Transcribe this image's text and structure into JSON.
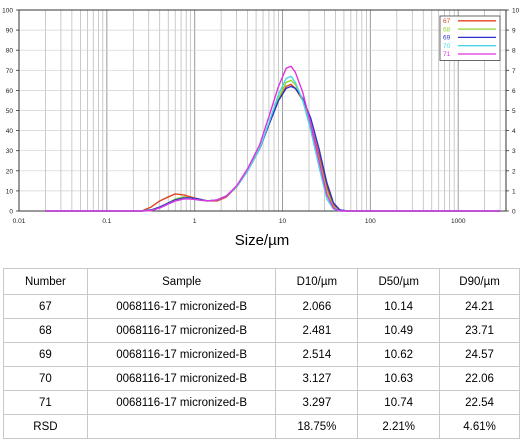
{
  "chart_data": {
    "type": "line",
    "xscale": "log",
    "xlim": [
      0.01,
      3500
    ],
    "ylim": [
      0,
      100
    ],
    "y2lim": [
      0,
      10
    ],
    "xlabel": "Size/µm",
    "ylabel": "",
    "x_ticks": [
      "0.01",
      "0.1",
      "1",
      "10",
      "100",
      "1000"
    ],
    "y_ticks": [
      "0",
      "10",
      "20",
      "30",
      "40",
      "50",
      "60",
      "70",
      "80",
      "90",
      "100"
    ],
    "y2_ticks": [
      "0",
      "1",
      "2",
      "3",
      "4",
      "5",
      "6",
      "7",
      "8",
      "9",
      "10"
    ],
    "grid": true,
    "legend_position": "top-right",
    "series": [
      {
        "name": "67",
        "color": "#e0431e",
        "x": [
          0.02,
          0.25,
          0.32,
          0.4,
          0.5,
          0.6,
          0.75,
          0.9,
          1.1,
          1.4,
          1.8,
          2.3,
          3,
          4,
          5.5,
          7,
          9,
          11,
          12.5,
          14,
          17,
          21,
          26,
          32,
          38,
          45,
          55,
          3000
        ],
        "y": [
          0,
          0,
          2,
          5,
          7,
          8.5,
          8,
          7,
          6,
          5,
          5,
          7,
          12,
          20,
          31,
          43,
          55,
          62,
          63,
          61,
          55,
          43,
          28,
          12,
          3,
          0.5,
          0,
          0
        ]
      },
      {
        "name": "68",
        "color": "#8fd52c",
        "x": [
          0.02,
          0.25,
          0.32,
          0.4,
          0.5,
          0.6,
          0.75,
          0.9,
          1.1,
          1.4,
          1.8,
          2.3,
          3,
          4,
          5.5,
          7,
          9,
          11,
          12.5,
          14,
          17,
          21,
          26,
          32,
          38,
          45,
          55,
          3000
        ],
        "y": [
          0,
          0,
          0.5,
          2,
          4,
          6,
          7,
          6.5,
          6,
          5,
          5.5,
          7.5,
          12,
          20,
          31,
          43,
          56,
          64,
          65,
          63,
          55,
          42,
          26,
          10,
          2,
          0.3,
          0,
          0
        ]
      },
      {
        "name": "69",
        "color": "#2a33c8",
        "x": [
          0.02,
          0.25,
          0.32,
          0.4,
          0.5,
          0.6,
          0.75,
          0.9,
          1.1,
          1.4,
          1.8,
          2.3,
          3,
          4,
          5.5,
          7,
          9,
          11,
          12.5,
          14,
          17,
          21,
          26,
          32,
          38,
          45,
          55,
          3000
        ],
        "y": [
          0,
          0,
          0.5,
          2,
          4,
          5.5,
          6.5,
          6.5,
          6,
          5,
          5.5,
          7.5,
          12,
          20,
          31,
          43,
          55,
          61,
          62,
          61,
          56,
          46,
          31,
          14,
          4,
          0.5,
          0,
          0
        ]
      },
      {
        "name": "70",
        "color": "#48d6e4",
        "x": [
          0.02,
          0.25,
          0.32,
          0.4,
          0.5,
          0.6,
          0.75,
          0.9,
          1.1,
          1.4,
          1.8,
          2.3,
          3,
          4,
          5.5,
          7,
          9,
          11,
          12.5,
          14,
          17,
          21,
          26,
          32,
          38,
          45,
          55,
          3000
        ],
        "y": [
          0,
          0,
          0.2,
          1.5,
          3.5,
          5,
          6,
          6,
          5.5,
          5,
          5.5,
          7.5,
          12,
          20,
          31,
          44,
          58,
          66,
          67,
          64,
          55,
          40,
          22,
          6,
          1,
          0,
          0,
          0
        ]
      },
      {
        "name": "71",
        "color": "#e033e0",
        "x": [
          0.02,
          0.25,
          0.32,
          0.4,
          0.5,
          0.6,
          0.75,
          0.9,
          1.1,
          1.4,
          1.8,
          2.3,
          3,
          4,
          5.5,
          7,
          9,
          11,
          12.5,
          14,
          17,
          21,
          26,
          32,
          38,
          45,
          55,
          3000
        ],
        "y": [
          0,
          0,
          0.2,
          1.5,
          3.5,
          5,
          6,
          6,
          5.5,
          5,
          5.5,
          7.5,
          12.5,
          21,
          33,
          47,
          62,
          71,
          72,
          69,
          59,
          43,
          25,
          8,
          1.5,
          0,
          0,
          0
        ]
      }
    ]
  },
  "table": {
    "headers": [
      "Number",
      "Sample",
      "D10/µm",
      "D50/µm",
      "D90/µm"
    ],
    "rows": [
      [
        "67",
        "0068116-17 micronized-B",
        "2.066",
        "10.14",
        "24.21"
      ],
      [
        "68",
        "0068116-17 micronized-B",
        "2.481",
        "10.49",
        "23.71"
      ],
      [
        "69",
        "0068116-17 micronized-B",
        "2.514",
        "10.62",
        "24.57"
      ],
      [
        "70",
        "0068116-17 micronized-B",
        "3.127",
        "10.63",
        "22.06"
      ],
      [
        "71",
        "0068116-17 micronized-B",
        "3.297",
        "10.74",
        "22.54"
      ],
      [
        "RSD",
        "",
        "18.75%",
        "2.21%",
        "4.61%"
      ]
    ]
  }
}
